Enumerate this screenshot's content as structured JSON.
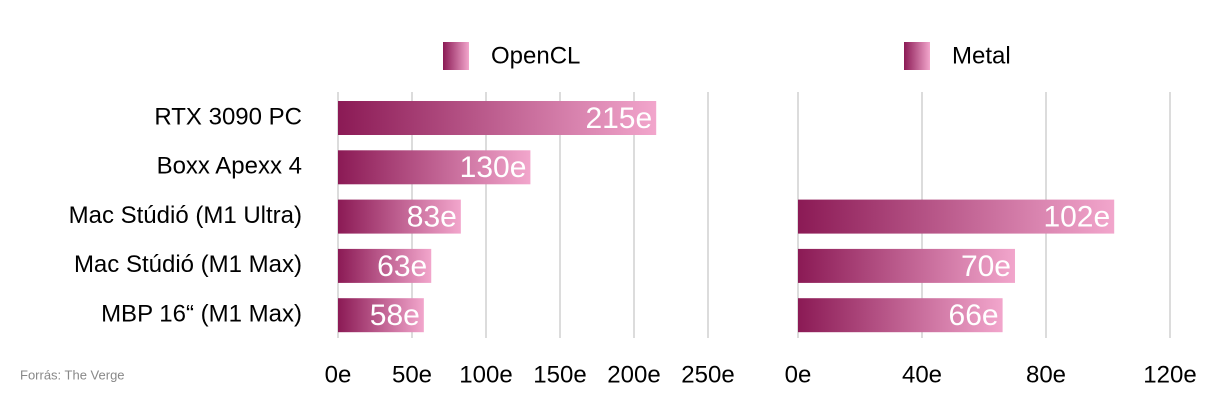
{
  "chart_data": [
    {
      "type": "bar",
      "orientation": "horizontal",
      "categories": [
        "RTX 3090 PC",
        "Boxx Apexx 4",
        "Mac Stúdió (M1 Ultra)",
        "Mac Stúdió (M1 Max)",
        "MBP 16“ (M1 Max)"
      ],
      "series": [
        {
          "name": "OpenCL",
          "color": [
            "#8b1a55",
            "#f2a6cc"
          ],
          "values": [
            215,
            130,
            83,
            63,
            58
          ],
          "value_labels": [
            "215e",
            "130e",
            "83e",
            "63e",
            "58e"
          ]
        }
      ],
      "xlim": [
        0,
        250
      ],
      "xticks": [
        {
          "value": 0,
          "label": "0e"
        },
        {
          "value": 50,
          "label": "50e"
        },
        {
          "value": 100,
          "label": "100e"
        },
        {
          "value": 150,
          "label": "150e"
        },
        {
          "value": 200,
          "label": "200e"
        },
        {
          "value": 250,
          "label": "250e"
        }
      ],
      "grid": true,
      "legend": "top"
    },
    {
      "type": "bar",
      "orientation": "horizontal",
      "series": [
        {
          "name": "Metal",
          "color": [
            "#8b1a55",
            "#f2a6cc"
          ],
          "values": [
            null,
            null,
            102,
            70,
            66
          ],
          "value_labels": [
            null,
            null,
            "102e",
            "70e",
            "66e"
          ]
        }
      ],
      "xlim": [
        0,
        120
      ],
      "xticks": [
        {
          "value": 0,
          "label": "0e"
        },
        {
          "value": 40,
          "label": "40e"
        },
        {
          "value": 80,
          "label": "80e"
        },
        {
          "value": 120,
          "label": "120e"
        }
      ],
      "grid": true,
      "legend": "top"
    }
  ],
  "source": "Forrás: The Verge"
}
